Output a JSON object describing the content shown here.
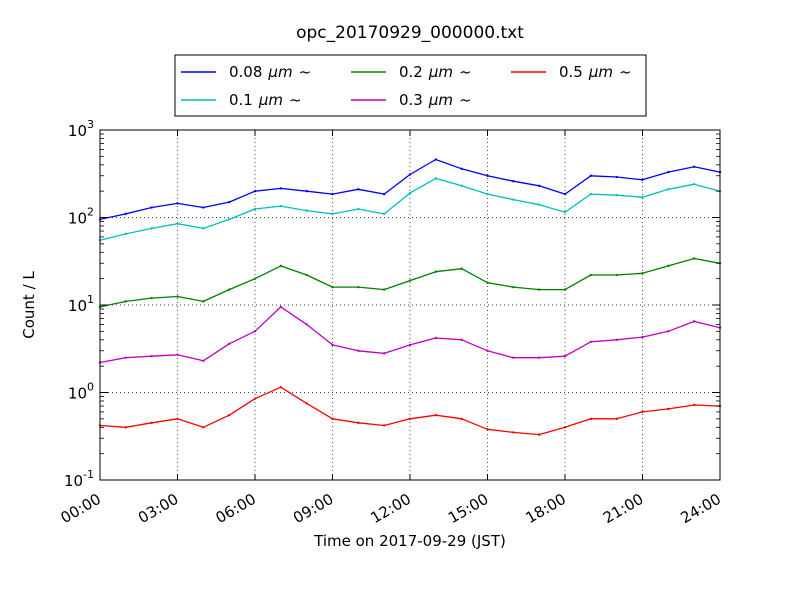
{
  "chart_data": {
    "type": "line",
    "title": "opc_20170929_000000.txt",
    "xlabel": "Time on 2017-09-29 (JST)",
    "ylabel": "Count / L",
    "yscale": "log",
    "xlim": [
      "00:00",
      "24:00"
    ],
    "ylim": [
      0.1,
      1000
    ],
    "grid": true,
    "legend_position": "top-center",
    "x_ticks": [
      "00:00",
      "03:00",
      "06:00",
      "09:00",
      "12:00",
      "15:00",
      "18:00",
      "21:00",
      "24:00"
    ],
    "y_ticks": [
      {
        "base": "10",
        "exp": "-1",
        "value": 0.1
      },
      {
        "base": "10",
        "exp": "0",
        "value": 1
      },
      {
        "base": "10",
        "exp": "1",
        "value": 10
      },
      {
        "base": "10",
        "exp": "2",
        "value": 100
      },
      {
        "base": "10",
        "exp": "3",
        "value": 1000
      }
    ],
    "x": [
      "00:00",
      "01:00",
      "02:00",
      "03:00",
      "04:00",
      "05:00",
      "06:00",
      "07:00",
      "08:00",
      "09:00",
      "10:00",
      "11:00",
      "12:00",
      "13:00",
      "14:00",
      "15:00",
      "16:00",
      "17:00",
      "18:00",
      "19:00",
      "20:00",
      "21:00",
      "22:00",
      "23:00",
      "24:00"
    ],
    "series": [
      {
        "name": "0.08",
        "unit": "μm",
        "suffix": "~",
        "color": "#0000ff",
        "values": [
          95,
          110,
          130,
          145,
          130,
          150,
          200,
          215,
          200,
          185,
          210,
          185,
          310,
          460,
          360,
          300,
          260,
          230,
          185,
          300,
          290,
          270,
          330,
          380,
          330
        ]
      },
      {
        "name": "0.1",
        "unit": "μm",
        "suffix": "~",
        "color": "#00bfbf",
        "values": [
          55,
          65,
          75,
          85,
          75,
          95,
          125,
          135,
          120,
          110,
          125,
          110,
          190,
          280,
          230,
          185,
          160,
          140,
          115,
          185,
          180,
          170,
          210,
          240,
          200
        ]
      },
      {
        "name": "0.2",
        "unit": "μm",
        "suffix": "~",
        "color": "#008000",
        "values": [
          9.5,
          11,
          12,
          12.5,
          11,
          15,
          20,
          28,
          22,
          16,
          16,
          15,
          19,
          24,
          26,
          18,
          16,
          15,
          15,
          22,
          22,
          23,
          28,
          34,
          30
        ]
      },
      {
        "name": "0.3",
        "unit": "μm",
        "suffix": "~",
        "color": "#bf00bf",
        "values": [
          2.2,
          2.5,
          2.6,
          2.7,
          2.3,
          3.6,
          5.0,
          9.5,
          6.0,
          3.5,
          3.0,
          2.8,
          3.5,
          4.2,
          4.0,
          3.0,
          2.5,
          2.5,
          2.6,
          3.8,
          4.0,
          4.3,
          5.0,
          6.5,
          5.5
        ]
      },
      {
        "name": "0.5",
        "unit": "μm",
        "suffix": "~",
        "color": "#ff0000",
        "values": [
          0.42,
          0.4,
          0.45,
          0.5,
          0.4,
          0.55,
          0.85,
          1.15,
          0.75,
          0.5,
          0.45,
          0.42,
          0.5,
          0.55,
          0.5,
          0.38,
          0.35,
          0.33,
          0.4,
          0.5,
          0.5,
          0.6,
          0.65,
          0.72,
          0.7
        ]
      }
    ]
  }
}
